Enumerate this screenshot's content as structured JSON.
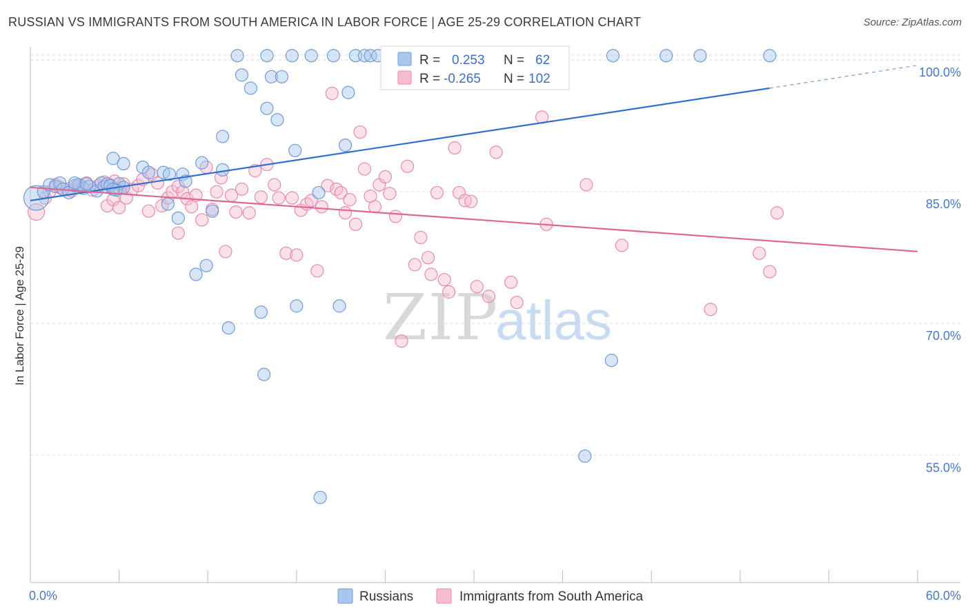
{
  "title": "RUSSIAN VS IMMIGRANTS FROM SOUTH AMERICA IN LABOR FORCE | AGE 25-29 CORRELATION CHART",
  "source": "Source: ZipAtlas.com",
  "watermark": {
    "zip": "ZIP",
    "atlas": "atlas"
  },
  "colors": {
    "blue_fill": "#a9c6ec",
    "blue_stroke": "#6f9bd8",
    "blue_line": "#2f6fcf",
    "pink_fill": "#f6bdd0",
    "pink_stroke": "#e98aac",
    "pink_line": "#e0668f",
    "tick_label": "#4a78c4",
    "grid": "#dcdcdc"
  },
  "chart_data": {
    "type": "scatter",
    "title": "RUSSIAN VS IMMIGRANTS FROM SOUTH AMERICA IN LABOR FORCE | AGE 25-29 CORRELATION CHART",
    "ylabel": "In Labor Force | Age 25-29",
    "xlabel": "",
    "xlim": [
      0,
      60
    ],
    "ylim": [
      40.5,
      101.5
    ],
    "x_tick_labels": [
      "0.0%",
      "60.0%"
    ],
    "y_ticks": [
      55,
      70,
      85,
      100
    ],
    "y_tick_labels": [
      "55.0%",
      "70.0%",
      "85.0%",
      "100.0%"
    ],
    "grid": "horizontal dashed",
    "legend_placement": "top-center",
    "legend": [
      {
        "r_label": "R =",
        "r_value": "0.253",
        "n_label": "N =",
        "n_value": "62"
      },
      {
        "r_label": "R =",
        "r_value": "-0.265",
        "n_label": "N =",
        "n_value": "102"
      }
    ],
    "series": [
      {
        "name": "Russians",
        "trend": {
          "x": [
            0,
            50,
            60
          ],
          "y": [
            84.0,
            96.8,
            99.4
          ],
          "solid_until": 50
        },
        "points": [
          [
            0.4,
            84.3,
            18
          ],
          [
            0.9,
            85.0,
            9
          ],
          [
            1.3,
            85.8,
            9
          ],
          [
            1.7,
            85.6,
            9
          ],
          [
            2.0,
            86.0,
            9
          ],
          [
            2.2,
            85.3,
            9
          ],
          [
            2.6,
            84.9,
            9
          ],
          [
            3.0,
            85.7,
            9
          ],
          [
            3.3,
            85.8,
            9
          ],
          [
            3.6,
            85.4,
            9
          ],
          [
            4.0,
            85.6,
            9
          ],
          [
            4.5,
            85.1,
            9
          ],
          [
            4.8,
            86.0,
            9
          ],
          [
            5.0,
            85.6,
            9
          ],
          [
            5.2,
            85.9,
            9
          ],
          [
            5.4,
            85.7,
            9
          ],
          [
            6.0,
            85.9,
            9
          ],
          [
            6.3,
            85.5,
            9
          ],
          [
            5.8,
            85.2,
            9
          ],
          [
            5.6,
            85.3,
            9
          ],
          [
            3.0,
            86.0,
            9
          ],
          [
            3.8,
            85.9,
            9
          ],
          [
            5.6,
            88.8,
            9
          ],
          [
            6.3,
            88.2,
            9
          ],
          [
            7.6,
            87.8,
            9
          ],
          [
            8.0,
            87.2,
            9
          ],
          [
            9.0,
            87.2,
            9
          ],
          [
            9.4,
            87.0,
            9
          ],
          [
            10.3,
            87.0,
            9
          ],
          [
            10.5,
            86.2,
            9
          ],
          [
            10.0,
            82.0,
            9
          ],
          [
            9.3,
            83.6,
            9
          ],
          [
            11.2,
            75.6,
            9
          ],
          [
            11.6,
            88.3,
            9
          ],
          [
            11.9,
            76.6,
            9
          ],
          [
            12.3,
            82.8,
            9
          ],
          [
            13.0,
            87.5,
            9
          ],
          [
            13.0,
            91.3,
            9
          ],
          [
            13.4,
            69.5,
            9
          ],
          [
            14.0,
            100.5,
            9
          ],
          [
            14.3,
            98.3,
            9
          ],
          [
            14.9,
            96.8,
            9
          ],
          [
            15.6,
            71.3,
            9
          ],
          [
            15.8,
            64.2,
            9
          ],
          [
            16.0,
            94.5,
            9
          ],
          [
            16.0,
            100.5,
            9
          ],
          [
            16.3,
            98.1,
            9
          ],
          [
            16.7,
            93.2,
            9
          ],
          [
            17.0,
            98.1,
            9
          ],
          [
            17.7,
            100.5,
            9
          ],
          [
            17.9,
            89.7,
            9
          ],
          [
            18.0,
            72.0,
            9
          ],
          [
            19.0,
            100.5,
            9
          ],
          [
            19.5,
            84.9,
            9
          ],
          [
            19.6,
            50.2,
            9
          ],
          [
            20.5,
            100.5,
            9
          ],
          [
            20.9,
            72.0,
            9
          ],
          [
            21.3,
            90.3,
            9
          ],
          [
            21.5,
            96.3,
            9
          ],
          [
            22.0,
            100.5,
            9
          ],
          [
            22.6,
            100.5,
            9
          ],
          [
            23.0,
            100.5,
            9
          ],
          [
            23.5,
            100.5,
            9
          ],
          [
            26.1,
            100.5,
            9
          ],
          [
            28.6,
            100.5,
            9
          ],
          [
            30.0,
            100.5,
            9
          ],
          [
            35.5,
            100.5,
            9
          ],
          [
            39.4,
            100.5,
            9
          ],
          [
            37.5,
            54.9,
            9
          ],
          [
            39.3,
            65.8,
            9
          ],
          [
            43.0,
            100.5,
            9
          ],
          [
            45.3,
            100.5,
            9
          ],
          [
            50.0,
            100.5,
            9
          ]
        ]
      },
      {
        "name": "Immigrants from South America",
        "trend": {
          "x": [
            0,
            60
          ],
          "y": [
            85.5,
            78.2
          ]
        },
        "points": [
          [
            0.4,
            82.7,
            12
          ],
          [
            1.0,
            84.3,
            9
          ],
          [
            1.3,
            85.0,
            9
          ],
          [
            1.7,
            85.8,
            9
          ],
          [
            2.0,
            85.5,
            9
          ],
          [
            2.5,
            85.3,
            9
          ],
          [
            2.8,
            85.1,
            9
          ],
          [
            3.2,
            85.8,
            9
          ],
          [
            3.5,
            85.6,
            9
          ],
          [
            3.8,
            86.0,
            9
          ],
          [
            4.2,
            85.2,
            9
          ],
          [
            4.6,
            85.7,
            9
          ],
          [
            5.0,
            86.1,
            9
          ],
          [
            5.4,
            85.8,
            9
          ],
          [
            5.7,
            86.2,
            9
          ],
          [
            6.0,
            85.4,
            9
          ],
          [
            6.3,
            85.9,
            9
          ],
          [
            5.2,
            83.4,
            9
          ],
          [
            5.6,
            84.1,
            9
          ],
          [
            6.0,
            83.2,
            9
          ],
          [
            6.5,
            84.3,
            9
          ],
          [
            6.9,
            85.3,
            9
          ],
          [
            7.3,
            85.7,
            9
          ],
          [
            7.6,
            86.4,
            9
          ],
          [
            8.0,
            82.8,
            9
          ],
          [
            8.2,
            87.0,
            9
          ],
          [
            8.6,
            86.0,
            9
          ],
          [
            8.9,
            83.4,
            9
          ],
          [
            9.3,
            84.3,
            9
          ],
          [
            9.6,
            85.0,
            9
          ],
          [
            10.0,
            85.6,
            9
          ],
          [
            10.3,
            85.0,
            9
          ],
          [
            10.0,
            80.3,
            9
          ],
          [
            10.6,
            84.2,
            9
          ],
          [
            10.9,
            83.3,
            9
          ],
          [
            11.2,
            84.6,
            9
          ],
          [
            11.6,
            81.8,
            9
          ],
          [
            11.9,
            87.8,
            9
          ],
          [
            12.3,
            83.0,
            9
          ],
          [
            12.6,
            85.0,
            9
          ],
          [
            12.9,
            86.6,
            9
          ],
          [
            13.2,
            78.2,
            9
          ],
          [
            13.6,
            84.6,
            9
          ],
          [
            13.9,
            82.7,
            9
          ],
          [
            14.3,
            85.3,
            9
          ],
          [
            14.8,
            82.6,
            9
          ],
          [
            15.2,
            87.4,
            9
          ],
          [
            15.6,
            84.4,
            9
          ],
          [
            16.0,
            88.1,
            9
          ],
          [
            16.5,
            85.8,
            9
          ],
          [
            16.8,
            84.3,
            9
          ],
          [
            17.3,
            78.0,
            9
          ],
          [
            17.7,
            84.3,
            9
          ],
          [
            18.0,
            77.8,
            9
          ],
          [
            18.3,
            82.9,
            9
          ],
          [
            18.7,
            83.6,
            9
          ],
          [
            19.0,
            84.0,
            9
          ],
          [
            19.4,
            76.0,
            9
          ],
          [
            19.7,
            83.3,
            9
          ],
          [
            20.1,
            85.7,
            9
          ],
          [
            20.4,
            96.2,
            9
          ],
          [
            20.7,
            85.3,
            9
          ],
          [
            21.0,
            84.9,
            9
          ],
          [
            21.3,
            82.6,
            9
          ],
          [
            21.6,
            84.1,
            9
          ],
          [
            22.0,
            81.3,
            9
          ],
          [
            22.3,
            91.8,
            9
          ],
          [
            22.6,
            87.6,
            9
          ],
          [
            23.0,
            84.5,
            9
          ],
          [
            23.3,
            83.3,
            9
          ],
          [
            23.6,
            85.8,
            9
          ],
          [
            24.0,
            86.7,
            9
          ],
          [
            24.3,
            84.8,
            9
          ],
          [
            24.7,
            82.2,
            9
          ],
          [
            25.1,
            68.0,
            9
          ],
          [
            25.5,
            87.9,
            9
          ],
          [
            26.0,
            76.7,
            9
          ],
          [
            26.4,
            79.8,
            9
          ],
          [
            26.9,
            77.5,
            9
          ],
          [
            27.1,
            75.6,
            9
          ],
          [
            27.5,
            84.9,
            9
          ],
          [
            28.0,
            75.0,
            9
          ],
          [
            28.3,
            73.6,
            9
          ],
          [
            28.7,
            90.0,
            9
          ],
          [
            29.0,
            84.9,
            9
          ],
          [
            29.4,
            84.0,
            9
          ],
          [
            29.8,
            83.9,
            9
          ],
          [
            30.2,
            74.2,
            9
          ],
          [
            31.0,
            73.1,
            9
          ],
          [
            31.5,
            89.5,
            9
          ],
          [
            32.0,
            100.5,
            9
          ],
          [
            32.5,
            74.7,
            9
          ],
          [
            32.9,
            72.4,
            9
          ],
          [
            33.4,
            100.5,
            9
          ],
          [
            34.6,
            93.5,
            9
          ],
          [
            34.9,
            81.3,
            9
          ],
          [
            37.6,
            85.8,
            9
          ],
          [
            40.0,
            78.9,
            9
          ],
          [
            46.0,
            71.6,
            9
          ],
          [
            49.3,
            78.0,
            9
          ],
          [
            50.0,
            75.9,
            9
          ],
          [
            50.5,
            82.6,
            9
          ]
        ]
      }
    ]
  },
  "bottom_legend": [
    "Russians",
    "Immigrants from South America"
  ]
}
